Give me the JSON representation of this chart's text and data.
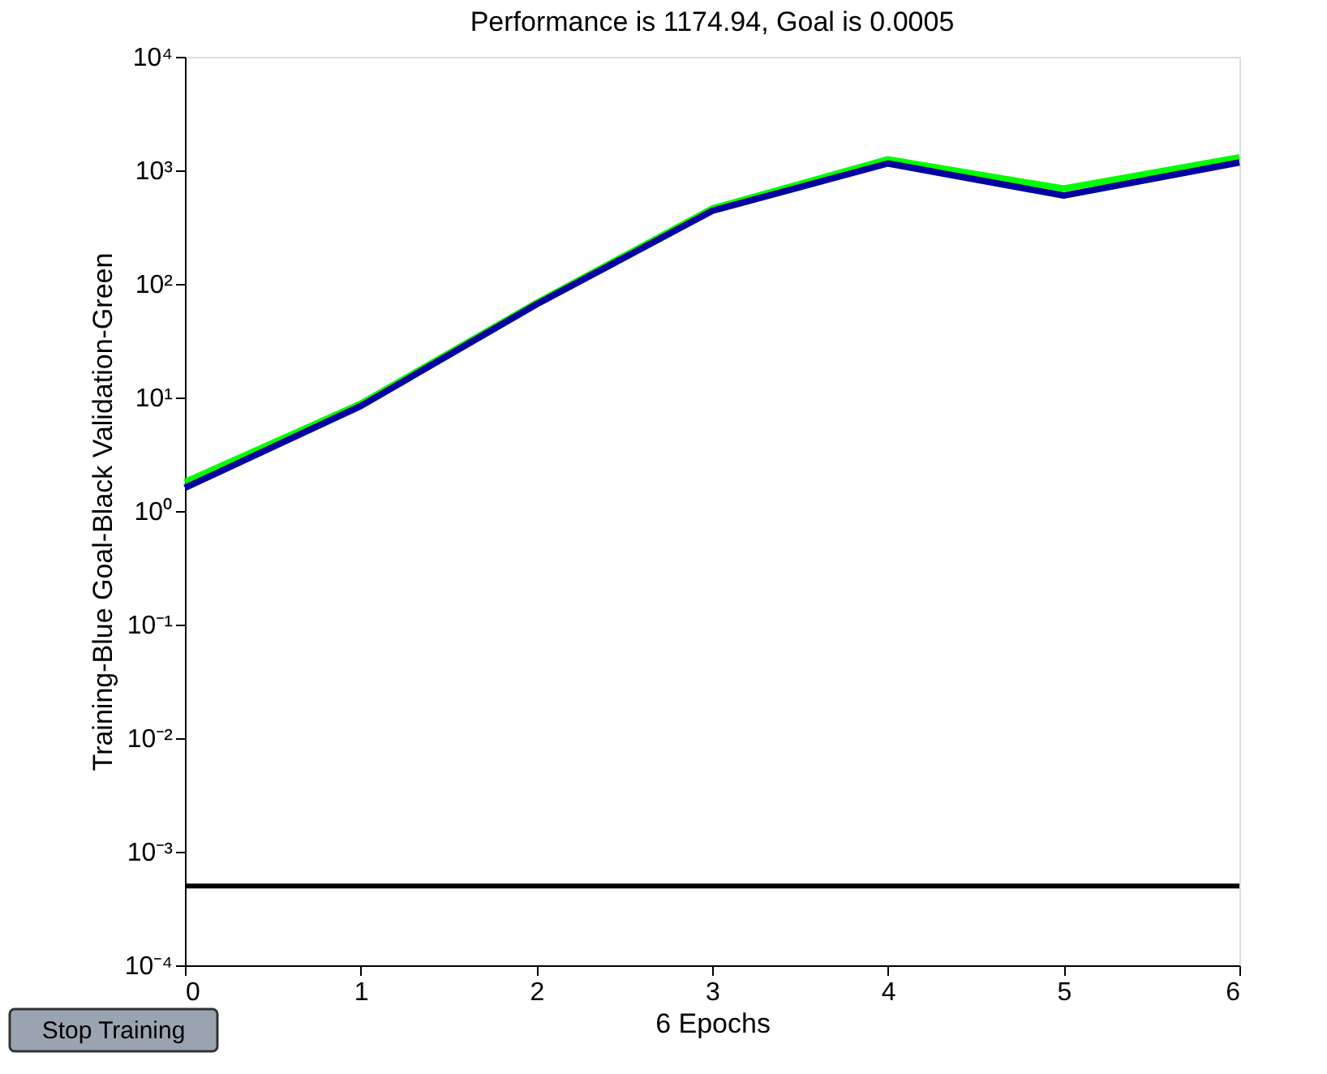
{
  "chart_data": {
    "type": "line",
    "title": "Performance is 1174.94, Goal is 0.0005",
    "xlabel": "6 Epochs",
    "ylabel": "Training-Blue  Goal-Black  Validation-Green",
    "x": [
      0,
      1,
      2,
      3,
      4,
      5,
      6
    ],
    "series": [
      {
        "color": "#00ff00",
        "values": [
          1.8,
          8.8,
          68,
          460,
          1250,
          690,
          1300
        ]
      },
      {
        "color": "#0000a0",
        "values": [
          1.6,
          8.4,
          66,
          440,
          1150,
          600,
          1174.94
        ]
      }
    ],
    "log": "y",
    "xlim": [
      0,
      6
    ],
    "xticks": [
      0,
      1,
      2,
      3,
      4,
      5,
      6
    ],
    "ylim": [
      0.0001,
      10000
    ],
    "yticks": [
      {
        "value": 0.0001,
        "label": "10⁻⁴"
      },
      {
        "value": 0.001,
        "label": "10⁻³"
      },
      {
        "value": 0.01,
        "label": "10⁻²"
      },
      {
        "value": 0.1,
        "label": "10⁻¹"
      },
      {
        "value": 1,
        "label": "10⁰"
      },
      {
        "value": 10,
        "label": "10¹"
      },
      {
        "value": 100,
        "label": "10²"
      },
      {
        "value": 1000,
        "label": "10³"
      },
      {
        "value": 10000,
        "label": "10⁴"
      }
    ],
    "ref_lines": [
      {
        "axis": "y",
        "value": 0.0005,
        "color": "#000000"
      }
    ],
    "grid": false,
    "marker": "none",
    "line_style": "solid",
    "annotations": [
      "Stop Training"
    ]
  }
}
